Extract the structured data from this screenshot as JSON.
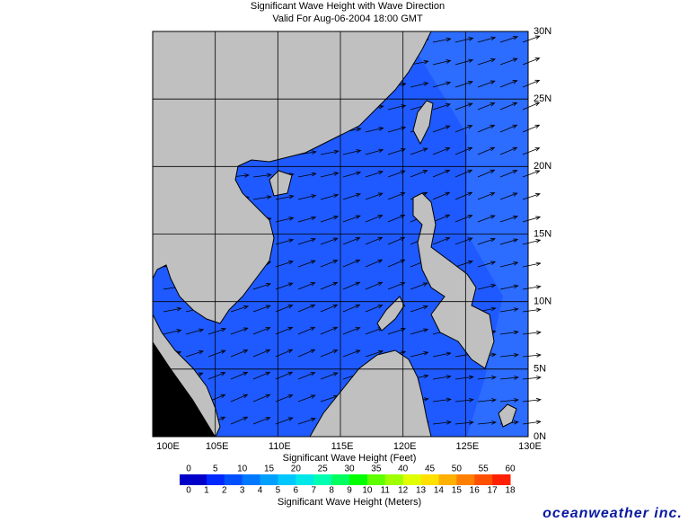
{
  "header": {
    "title": "Significant Wave Height with Wave Direction",
    "subtitle": "Valid For Aug-06-2004 18:00 GMT"
  },
  "map": {
    "lon_labels": [
      "100E",
      "105E",
      "110E",
      "115E",
      "120E",
      "125E",
      "130E"
    ],
    "lat_labels": [
      "0N",
      "5N",
      "10N",
      "15N",
      "20N",
      "25N",
      "30N"
    ]
  },
  "colorbar": {
    "feet_title": "Significant Wave Height (Feet)",
    "feet_ticks": [
      0,
      5,
      10,
      15,
      20,
      25,
      30,
      35,
      40,
      45,
      50,
      55,
      60
    ],
    "meter_title": "Significant Wave Height (Meters)",
    "meter_ticks": [
      0,
      1,
      2,
      3,
      4,
      5,
      6,
      7,
      8,
      9,
      10,
      11,
      12,
      13,
      14,
      15,
      16,
      17,
      18
    ],
    "colors": [
      "#0000c8",
      "#0028ff",
      "#0050ff",
      "#0078ff",
      "#00a0ff",
      "#00c8ff",
      "#00e8e8",
      "#00ffb0",
      "#00ff60",
      "#00ff00",
      "#60ff00",
      "#a0ff00",
      "#e0ff00",
      "#ffe000",
      "#ffb000",
      "#ff8000",
      "#ff5000",
      "#ff2000"
    ]
  },
  "footer": {
    "logo": "oceanweather inc."
  }
}
